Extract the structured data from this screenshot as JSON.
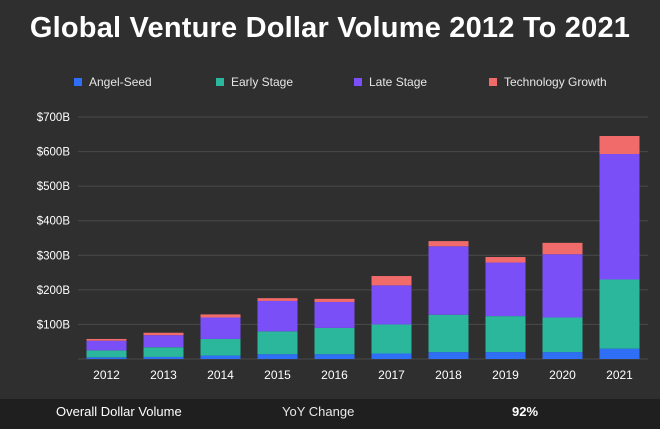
{
  "chart_data": {
    "type": "bar",
    "stacked": true,
    "title": "Global Venture Dollar Volume 2012 To 2021",
    "xlabel": "",
    "ylabel": "",
    "ylim": [
      0,
      700
    ],
    "yticks": [
      100,
      200,
      300,
      400,
      500,
      600,
      700
    ],
    "ytick_labels": [
      "$100B",
      "$200B",
      "$300B",
      "$400B",
      "$500B",
      "$600B",
      "$700B"
    ],
    "grid": true,
    "legend_position": "top",
    "categories": [
      "2012",
      "2013",
      "2014",
      "2015",
      "2016",
      "2017",
      "2018",
      "2019",
      "2020",
      "2021"
    ],
    "series": [
      {
        "name": "Angel-Seed",
        "color": "#2f6ff5",
        "values": [
          5,
          6,
          10,
          14,
          14,
          16,
          20,
          20,
          20,
          30
        ]
      },
      {
        "name": "Early Stage",
        "color": "#2ab79c",
        "values": [
          20,
          28,
          48,
          66,
          76,
          84,
          108,
          104,
          100,
          200
        ]
      },
      {
        "name": "Late Stage",
        "color": "#7b4ff7",
        "values": [
          28,
          35,
          62,
          88,
          75,
          113,
          198,
          155,
          183,
          363
        ]
      },
      {
        "name": "Technology Growth",
        "color": "#f26b6b",
        "values": [
          5,
          7,
          9,
          8,
          9,
          27,
          15,
          16,
          33,
          52
        ]
      }
    ]
  },
  "footer": {
    "label": "Overall Dollar Volume",
    "mid": "YoY Change",
    "value": "92%"
  }
}
